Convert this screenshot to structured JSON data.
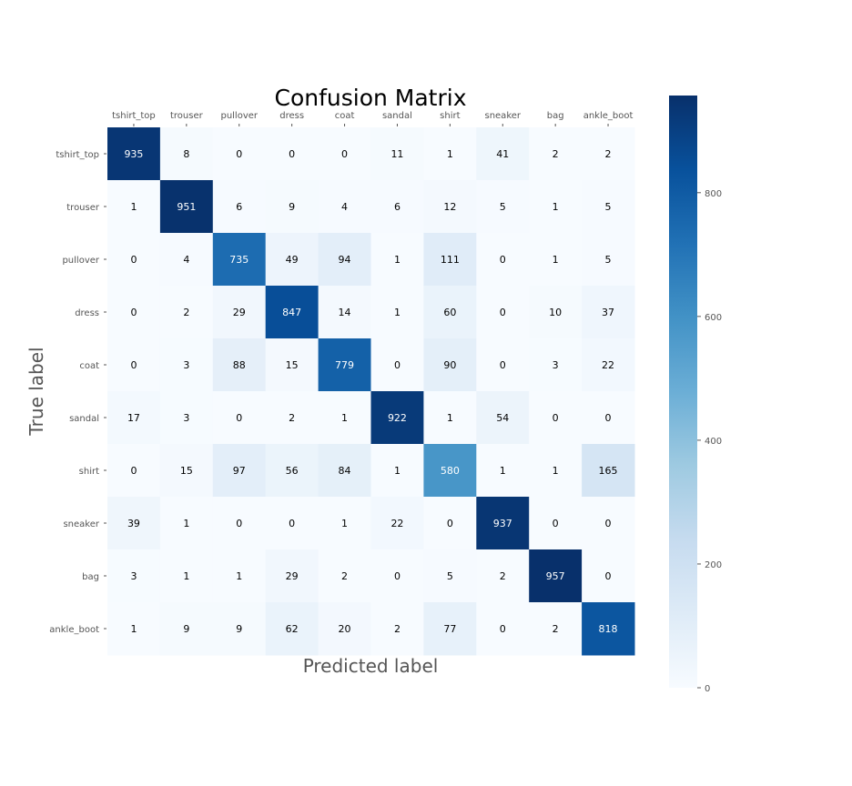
{
  "chart_data": {
    "type": "heatmap",
    "title": "Confusion Matrix",
    "xlabel": "Predicted label",
    "ylabel": "True label",
    "x_categories": [
      "tshirt_top",
      "trouser",
      "pullover",
      "dress",
      "coat",
      "sandal",
      "shirt",
      "sneaker",
      "bag",
      "ankle_boot"
    ],
    "y_categories": [
      "tshirt_top",
      "trouser",
      "pullover",
      "dress",
      "coat",
      "sandal",
      "shirt",
      "sneaker",
      "bag",
      "ankle_boot"
    ],
    "values": [
      [
        935,
        8,
        0,
        0,
        0,
        11,
        1,
        41,
        2,
        2
      ],
      [
        1,
        951,
        6,
        9,
        4,
        6,
        12,
        5,
        1,
        5
      ],
      [
        0,
        4,
        735,
        49,
        94,
        1,
        111,
        0,
        1,
        5
      ],
      [
        0,
        2,
        29,
        847,
        14,
        1,
        60,
        0,
        10,
        37
      ],
      [
        0,
        3,
        88,
        15,
        779,
        0,
        90,
        0,
        3,
        22
      ],
      [
        17,
        3,
        0,
        2,
        1,
        922,
        1,
        54,
        0,
        0
      ],
      [
        0,
        15,
        97,
        56,
        84,
        1,
        580,
        1,
        1,
        165
      ],
      [
        39,
        1,
        0,
        0,
        1,
        22,
        0,
        937,
        0,
        0
      ],
      [
        3,
        1,
        1,
        29,
        2,
        0,
        5,
        2,
        957,
        0
      ],
      [
        1,
        9,
        9,
        62,
        20,
        2,
        77,
        0,
        2,
        818
      ]
    ],
    "colormap": "Blues",
    "colorbar": {
      "range": [
        0,
        957
      ],
      "ticks": [
        0,
        200,
        400,
        600,
        800
      ]
    },
    "x_ticks_position": "top",
    "grid": false
  }
}
